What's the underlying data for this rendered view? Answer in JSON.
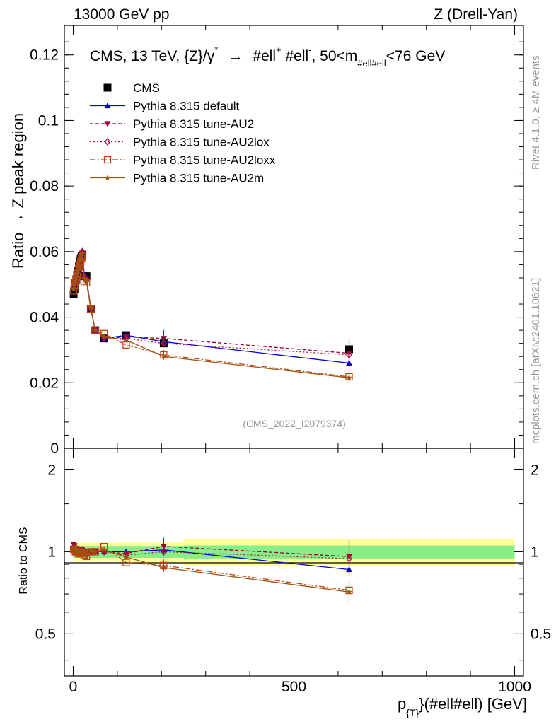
{
  "header": {
    "left": "13000 GeV pp",
    "right": "Z (Drell-Yan)"
  },
  "plot_title": {
    "prefix": "CMS, 13 TeV, {Z}/γ",
    "star": "*",
    "arrow": "→",
    "ell1": "#ell",
    "plus": "+",
    "ell2": " #ell",
    "minus": "-",
    "range_prefix": ",  50<m",
    "range_sub": "#ell#ell",
    "range_suffix": "<76 GeV"
  },
  "side_labels": {
    "rivet": "Rivet 4.1.0, ≥ 4M events",
    "mcplots": "mcplots.cern.ch [arXiv:2401.10621]"
  },
  "analysis_id": "(CMS_2022_I2079374)",
  "main_panel": {
    "ylabel": "Ratio → Z peak region",
    "y_ticks": [
      "0",
      "0.02",
      "0.04",
      "0.06",
      "0.08",
      "0.1",
      "0.12"
    ]
  },
  "ratio_panel": {
    "ylabel": "Ratio to CMS",
    "y_ticks": [
      "0.5",
      "1",
      "2"
    ],
    "y_ticks_right": [
      "0.5",
      "1",
      "2"
    ]
  },
  "x_axis": {
    "label_p": "p",
    "label_sub": "{T}",
    "label_rest": "}(#ell#ell) [GeV]",
    "ticks": [
      "0",
      "500",
      "1000"
    ]
  },
  "legend": [
    {
      "label": "CMS",
      "color": "#000000",
      "marker": "square"
    },
    {
      "label": "Pythia 8.315 default",
      "color": "#0000cc",
      "marker": "triangle-up"
    },
    {
      "label": "Pythia 8.315 tune-AU2",
      "color": "#990033",
      "marker": "triangle-down"
    },
    {
      "label": "Pythia 8.315 tune-AU2lox",
      "color": "#aa1144",
      "marker": "diamond-open"
    },
    {
      "label": "Pythia 8.315 tune-AU2loxx",
      "color": "#bb4411",
      "marker": "square-open"
    },
    {
      "label": "Pythia 8.315 tune-AU2m",
      "color": "#995511",
      "marker": "star"
    }
  ],
  "chart_data": {
    "type": "line",
    "title": "CMS, 13 TeV, {Z}/γ* → #ell+ #ell-, 50<m_#ell#ell<76 GeV",
    "xlabel": "p_{T}(#ell#ell) [GeV]",
    "ylabel": "Ratio → Z peak region",
    "xlim": [
      -20,
      1020
    ],
    "ylim": [
      0,
      0.129
    ],
    "ratio_ylim": [
      0.35,
      2.4
    ],
    "x": [
      1,
      3,
      5,
      7,
      9,
      11,
      13,
      15,
      17,
      19,
      21,
      25,
      30,
      40,
      50,
      70,
      120,
      205,
      625
    ],
    "series": [
      {
        "name": "CMS",
        "values": [
          0.047,
          0.0485,
          0.0505,
          0.0515,
          0.053,
          0.054,
          0.0555,
          0.057,
          0.058,
          0.0585,
          0.059,
          0.0525,
          0.0525,
          0.0425,
          0.036,
          0.0335,
          0.0345,
          0.032,
          0.0302
        ]
      },
      {
        "name": "Pythia 8.315 default",
        "values": [
          0.0495,
          0.05,
          0.051,
          0.052,
          0.053,
          0.054,
          0.055,
          0.0565,
          0.0575,
          0.059,
          0.06,
          0.053,
          0.052,
          0.0425,
          0.036,
          0.0335,
          0.0345,
          0.0325,
          0.026
        ]
      },
      {
        "name": "Pythia 8.315 tune-AU2",
        "values": [
          0.05,
          0.051,
          0.052,
          0.053,
          0.054,
          0.055,
          0.056,
          0.057,
          0.058,
          0.0595,
          0.0595,
          0.0525,
          0.0515,
          0.0425,
          0.036,
          0.0335,
          0.034,
          0.0335,
          0.029
        ]
      },
      {
        "name": "Pythia 8.315 tune-AU2lox",
        "values": [
          0.049,
          0.05,
          0.051,
          0.0525,
          0.0535,
          0.0545,
          0.0555,
          0.0565,
          0.058,
          0.059,
          0.06,
          0.052,
          0.051,
          0.0425,
          0.036,
          0.0335,
          0.0335,
          0.032,
          0.0285
        ]
      },
      {
        "name": "Pythia 8.315 tune-AU2loxx",
        "values": [
          0.048,
          0.0495,
          0.0505,
          0.0515,
          0.0525,
          0.0535,
          0.055,
          0.056,
          0.057,
          0.058,
          0.0585,
          0.051,
          0.0505,
          0.0425,
          0.036,
          0.035,
          0.0315,
          0.0285,
          0.0218
        ]
      },
      {
        "name": "Pythia 8.315 tune-AU2m",
        "values": [
          0.0485,
          0.05,
          0.051,
          0.052,
          0.053,
          0.054,
          0.0555,
          0.057,
          0.058,
          0.059,
          0.0595,
          0.0515,
          0.051,
          0.043,
          0.036,
          0.034,
          0.033,
          0.028,
          0.0215
        ]
      }
    ],
    "error_bars": {
      "Pythia 8.315 tune-AU2": {
        "205": 0.0025,
        "625": 0.0045
      },
      "Pythia 8.315 tune-AU2loxx": {
        "205": 0.0015,
        "625": 0.002
      }
    },
    "ratio_bands": {
      "edges": [
        0,
        50,
        100,
        160,
        250,
        1000
      ],
      "green": [
        0.05,
        0.05,
        0.05,
        0.05,
        0.055
      ],
      "yellow": [
        0.08,
        0.08,
        0.085,
        0.09,
        0.11
      ]
    }
  }
}
